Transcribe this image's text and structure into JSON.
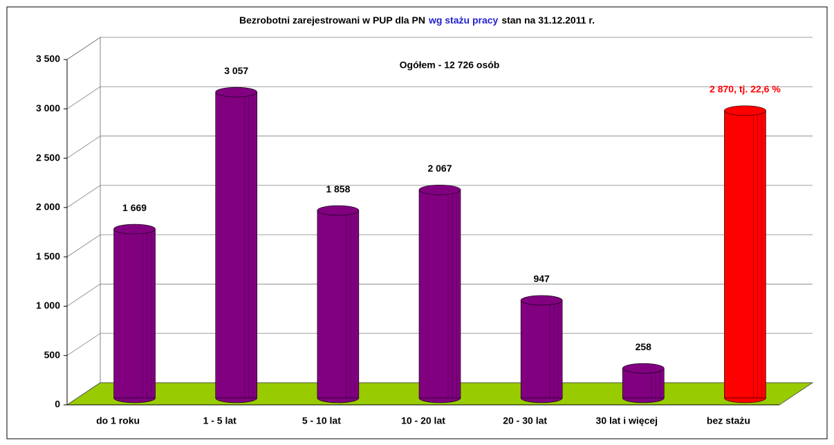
{
  "chart_data": {
    "type": "bar",
    "title": [
      "Bezrobotni zarejestrowani w PUP dla PN",
      "wg stażu pracy",
      "stan na 31.12.2011 r."
    ],
    "title_colors": [
      "#000000",
      "#1f1fcc",
      "#000000"
    ],
    "annotation": "Ogółem - 12 726  osób",
    "categories": [
      "do 1 roku",
      "1 - 5 lat",
      "5 - 10 lat",
      "10 - 20 lat",
      "20 - 30 lat",
      "30 lat i więcej",
      "bez stażu"
    ],
    "values": [
      1669,
      3057,
      1858,
      2067,
      947,
      258,
      2870
    ],
    "value_labels": [
      "1 669",
      "3 057",
      "1 858",
      "2 067",
      "947",
      "258",
      "2 870, tj. 22,6 %"
    ],
    "colors": [
      "#800080",
      "#800080",
      "#800080",
      "#800080",
      "#800080",
      "#800080",
      "#ff0000"
    ],
    "value_label_colors": [
      "#000000",
      "#000000",
      "#000000",
      "#000000",
      "#000000",
      "#000000",
      "#ff0000"
    ],
    "floor_color": "#99cc00",
    "ylim": [
      0,
      3500
    ],
    "yticks": [
      0,
      500,
      {
        "value": 1000,
        "label": "1 000"
      },
      {
        "value": 1500,
        "label": "1 500"
      },
      {
        "value": 2000,
        "label": "2 000"
      },
      {
        "value": 2500,
        "label": "2 500"
      },
      {
        "value": 3000,
        "label": "3 000"
      },
      {
        "value": 3500,
        "label": "3 500"
      }
    ],
    "grid": true
  }
}
